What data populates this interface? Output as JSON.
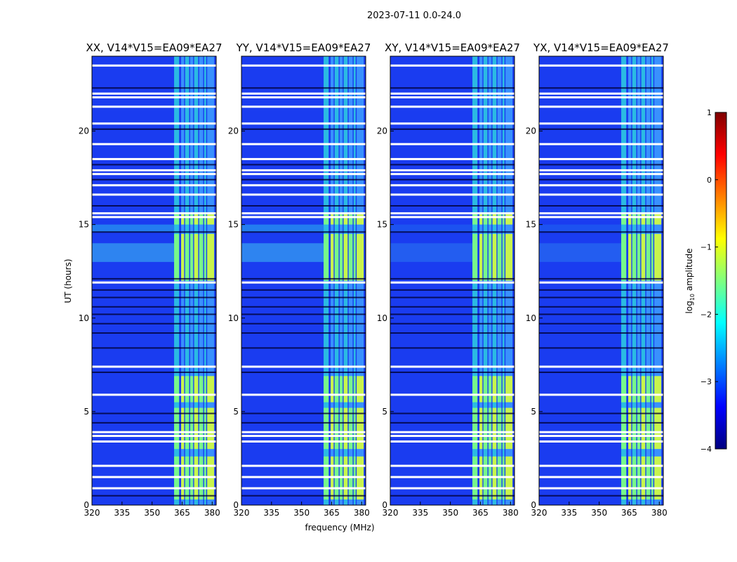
{
  "chart_data": {
    "type": "heatmap",
    "suptitle": "2023-07-11 0.0-24.0",
    "xlabel": "frequency (MHz)",
    "ylabel": "UT (hours)",
    "xlim": [
      320,
      382
    ],
    "ylim": [
      0,
      24
    ],
    "xticks": [
      320,
      335,
      350,
      365,
      380
    ],
    "yticks": [
      0,
      5,
      10,
      15,
      20
    ],
    "colorbar": {
      "label_main": "log",
      "label_sub": "10",
      "label_rest": " amplitude",
      "ticks": [
        1,
        0,
        -1,
        -2,
        -3,
        -4
      ],
      "range": [
        -4,
        1
      ],
      "colors": [
        "#00007f",
        "#0000ff",
        "#007fff",
        "#00ffff",
        "#7fff7f",
        "#ffff00",
        "#ff7f00",
        "#ff0000",
        "#7f0000"
      ]
    },
    "panels": [
      {
        "title": "XX, V14*V15=EA09*EA27"
      },
      {
        "title": "YY, V14*V15=EA09*EA27"
      },
      {
        "title": "XY, V14*V15=EA09*EA27"
      },
      {
        "title": "YX, V14*V15=EA09*EA27"
      }
    ],
    "flagged_hours": [
      0.9,
      1.5,
      2.1,
      3.4,
      3.7,
      3.9,
      5.9,
      7.4,
      11.9,
      15.4,
      15.6,
      16.6,
      17.1,
      17.7,
      17.9,
      18.5,
      19.3,
      20.4,
      21.3,
      21.8,
      22.0,
      23.5
    ],
    "dark_hours": [
      0.5,
      4.4,
      4.9,
      7.1,
      8.4,
      9.2,
      9.7,
      10.2,
      10.6,
      11.1,
      11.5,
      12.1,
      14.6,
      16.0,
      17.4,
      18.2,
      20.1,
      22.3
    ],
    "rfi_bands_mhz": [
      [
        361,
        363.5
      ],
      [
        364.5,
        366
      ],
      [
        366.5,
        368.5
      ],
      [
        369,
        370.5
      ],
      [
        371,
        373
      ],
      [
        373.5,
        375.5
      ],
      [
        376,
        377
      ],
      [
        377.5,
        381
      ]
    ],
    "bright_hours": [
      [
        0.3,
        2.6
      ],
      [
        3.0,
        5.2
      ],
      [
        5.5,
        6.9
      ],
      [
        12.0,
        14.5
      ],
      [
        15.0,
        15.6
      ]
    ]
  }
}
